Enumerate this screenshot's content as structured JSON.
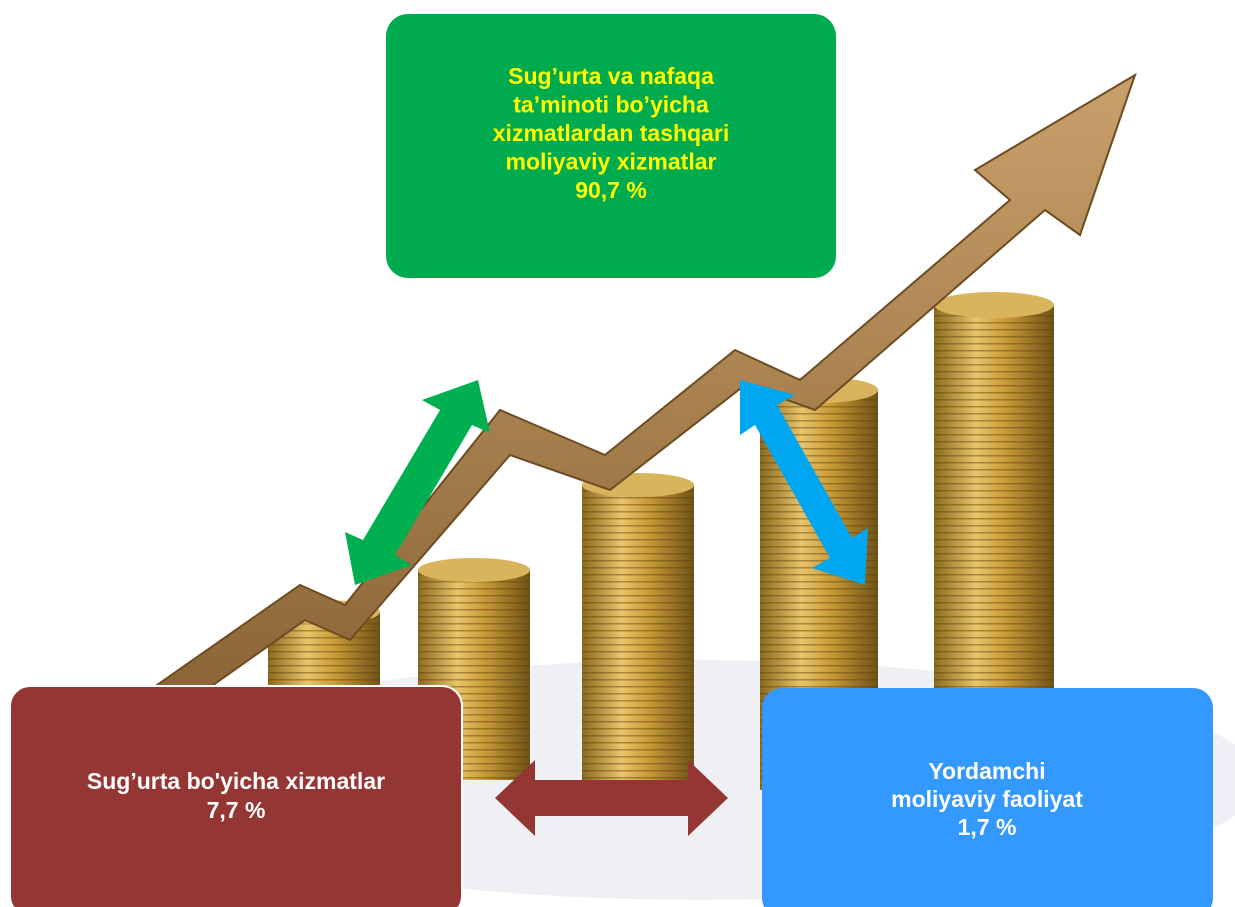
{
  "nodes": [
    {
      "label": [
        "Sug’urta va nafaqa",
        "ta’minoti bo’yicha",
        "xizmatlardan tashqari",
        "moliyaviy xizmatlar",
        "90,7 %"
      ]
    },
    {
      "label": [
        "Sug’urta bo'yicha xizmatlar",
        "7,7 %"
      ]
    },
    {
      "label": [
        "Yordamchi",
        "moliyaviy faoliyat",
        "1,7 %"
      ]
    }
  ]
}
